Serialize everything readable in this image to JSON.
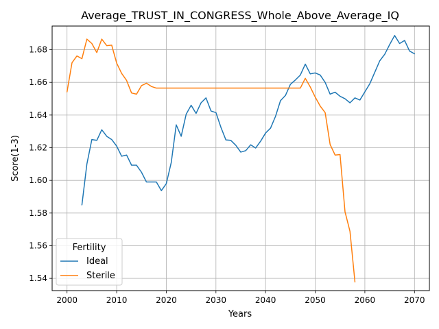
{
  "chart_data": {
    "type": "line",
    "title": "Average_TRUST_IN_CONGRESS_Whole_Above_Average_IQ",
    "xlabel": "Years",
    "ylabel": "Score(1-3)",
    "xlim": [
      1997,
      2073
    ],
    "ylim": [
      1.5325,
      1.6945
    ],
    "xticks": [
      2000,
      2010,
      2020,
      2030,
      2040,
      2050,
      2060,
      2070
    ],
    "yticks": [
      1.54,
      1.56,
      1.58,
      1.6,
      1.62,
      1.64,
      1.66,
      1.68
    ],
    "ytick_labels": [
      "1.54",
      "1.56",
      "1.58",
      "1.60",
      "1.62",
      "1.64",
      "1.66",
      "1.68"
    ],
    "grid": true,
    "legend": {
      "title": "Fertility",
      "location": "lower-left"
    },
    "series": [
      {
        "name": "Ideal",
        "color": "#1f77b4",
        "x": [
          2003,
          2004,
          2005,
          2006,
          2007,
          2008,
          2009,
          2010,
          2011,
          2012,
          2013,
          2014,
          2015,
          2016,
          2017,
          2018,
          2019,
          2020,
          2021,
          2022,
          2023,
          2024,
          2025,
          2026,
          2027,
          2028,
          2029,
          2030,
          2031,
          2032,
          2033,
          2034,
          2035,
          2036,
          2037,
          2038,
          2039,
          2040,
          2041,
          2042,
          2043,
          2044,
          2045,
          2046,
          2047,
          2048,
          2049,
          2050,
          2051,
          2052,
          2053,
          2054,
          2055,
          2056,
          2057,
          2058,
          2059,
          2060,
          2061,
          2062,
          2063,
          2064,
          2065,
          2066,
          2067,
          2068,
          2069,
          2070
        ],
        "y": [
          1.585,
          1.61,
          1.625,
          1.6245,
          1.631,
          1.627,
          1.625,
          1.621,
          1.6148,
          1.6155,
          1.6093,
          1.6093,
          1.605,
          1.599,
          1.599,
          1.599,
          1.5937,
          1.598,
          1.611,
          1.634,
          1.627,
          1.6405,
          1.646,
          1.641,
          1.6475,
          1.6505,
          1.6425,
          1.6415,
          1.6325,
          1.6248,
          1.6245,
          1.6215,
          1.6173,
          1.6182,
          1.6218,
          1.6198,
          1.624,
          1.629,
          1.632,
          1.6392,
          1.6488,
          1.652,
          1.6588,
          1.6615,
          1.6645,
          1.6712,
          1.6652,
          1.6658,
          1.6645,
          1.66,
          1.6528,
          1.654,
          1.6515,
          1.65,
          1.6475,
          1.6505,
          1.6492,
          1.6542,
          1.6592,
          1.6662,
          1.6732,
          1.6772,
          1.6832,
          1.6887,
          1.6838,
          1.6857,
          1.6792,
          1.6775
        ]
      },
      {
        "name": "Sterile",
        "color": "#ff7f0e",
        "x": [
          2000,
          2001,
          2002,
          2003,
          2004,
          2005,
          2006,
          2007,
          2008,
          2009,
          2010,
          2011,
          2012,
          2013,
          2014,
          2015,
          2016,
          2017,
          2018,
          2019,
          2020,
          2021,
          2022,
          2023,
          2024,
          2025,
          2026,
          2027,
          2028,
          2029,
          2030,
          2031,
          2032,
          2033,
          2034,
          2035,
          2036,
          2037,
          2038,
          2039,
          2040,
          2041,
          2042,
          2043,
          2044,
          2045,
          2046,
          2047,
          2048,
          2049,
          2050,
          2051,
          2052,
          2053,
          2054,
          2055,
          2056,
          2057,
          2058
        ],
        "y": [
          1.6542,
          1.672,
          1.6762,
          1.6745,
          1.6865,
          1.6838,
          1.6783,
          1.6865,
          1.6825,
          1.6828,
          1.6718,
          1.6655,
          1.6612,
          1.6535,
          1.6528,
          1.658,
          1.6595,
          1.6575,
          1.6565,
          1.6565,
          1.6565,
          1.6565,
          1.6565,
          1.6565,
          1.6565,
          1.6565,
          1.6565,
          1.6565,
          1.6565,
          1.6565,
          1.6565,
          1.6565,
          1.6565,
          1.6565,
          1.6565,
          1.6565,
          1.6565,
          1.6565,
          1.6565,
          1.6565,
          1.6565,
          1.6565,
          1.6565,
          1.6565,
          1.6565,
          1.6565,
          1.6565,
          1.6565,
          1.6625,
          1.6572,
          1.651,
          1.6455,
          1.6415,
          1.622,
          1.6155,
          1.6158,
          1.5808,
          1.5688,
          1.5378
        ]
      }
    ]
  }
}
